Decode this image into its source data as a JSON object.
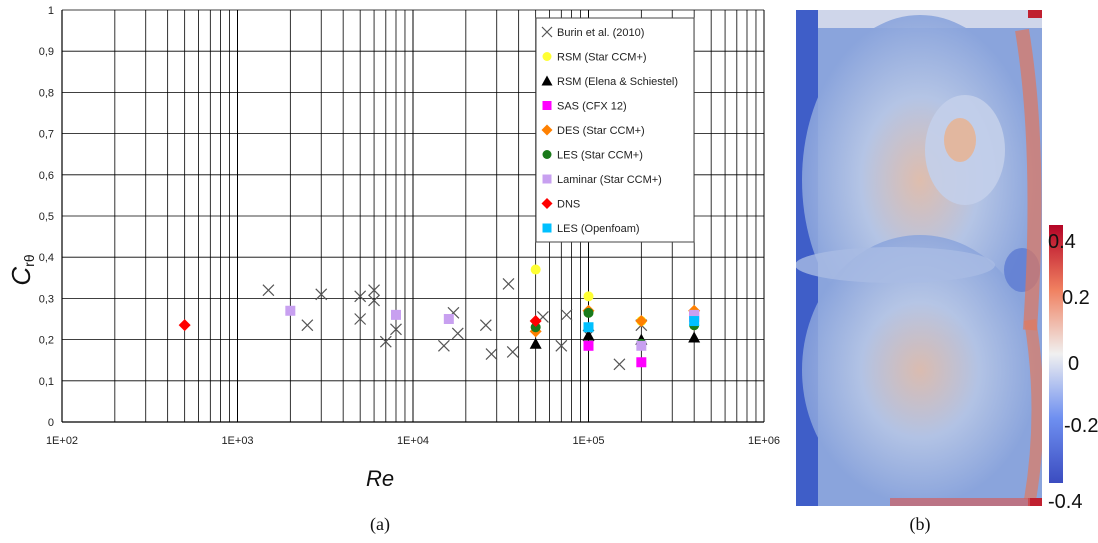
{
  "chart_data": {
    "type": "scatter",
    "xscale": "log",
    "xlim": [
      100,
      1000000
    ],
    "ylim": [
      0,
      1
    ],
    "xlabel": "Re",
    "ylabel": "C",
    "ylabel_sub": "rθ",
    "xticks": [
      "1E+02",
      "1E+03",
      "1E+04",
      "1E+05",
      "1E+06"
    ],
    "yticks": [
      "0",
      "0,1",
      "0,2",
      "0,3",
      "0,4",
      "0,5",
      "0,6",
      "0,7",
      "0,8",
      "0,9",
      "1"
    ],
    "grid": true,
    "legend_position": "top-right",
    "series": [
      {
        "name": "Burin et al. (2010)",
        "marker": "x",
        "color": "#555555",
        "points": [
          [
            1500,
            0.32
          ],
          [
            2500,
            0.235
          ],
          [
            3000,
            0.31
          ],
          [
            5000,
            0.305
          ],
          [
            5000,
            0.25
          ],
          [
            6000,
            0.32
          ],
          [
            6000,
            0.295
          ],
          [
            7000,
            0.195
          ],
          [
            8000,
            0.225
          ],
          [
            15000,
            0.185
          ],
          [
            17000,
            0.265
          ],
          [
            18000,
            0.215
          ],
          [
            26000,
            0.235
          ],
          [
            28000,
            0.165
          ],
          [
            35000,
            0.335
          ],
          [
            37000,
            0.17
          ],
          [
            55000,
            0.255
          ],
          [
            70000,
            0.185
          ],
          [
            75000,
            0.26
          ],
          [
            100000,
            0.21
          ],
          [
            150000,
            0.14
          ],
          [
            200000,
            0.235
          ]
        ]
      },
      {
        "name": "RSM (Star CCM+)",
        "marker": "circle",
        "color": "#ffff33",
        "points": [
          [
            50000,
            0.37
          ],
          [
            100000,
            0.305
          ],
          [
            200000,
            0.245
          ],
          [
            400000,
            0.235
          ]
        ]
      },
      {
        "name": "RSM (Elena & Schiestel)",
        "marker": "triangle",
        "color": "#000000",
        "points": [
          [
            50000,
            0.19
          ],
          [
            100000,
            0.21
          ],
          [
            200000,
            0.2
          ],
          [
            400000,
            0.205
          ]
        ]
      },
      {
        "name": "SAS (CFX 12)",
        "marker": "square",
        "color": "#ff00ff",
        "points": [
          [
            100000,
            0.185
          ],
          [
            200000,
            0.145
          ],
          [
            400000,
            0.255
          ]
        ]
      },
      {
        "name": "DES (Star CCM+)",
        "marker": "diamond",
        "color": "#ff8000",
        "points": [
          [
            50000,
            0.22
          ],
          [
            100000,
            0.27
          ],
          [
            200000,
            0.245
          ],
          [
            400000,
            0.27
          ]
        ]
      },
      {
        "name": "LES (Star CCM+)",
        "marker": "circle",
        "color": "#1a7a1a",
        "points": [
          [
            50000,
            0.23
          ],
          [
            100000,
            0.265
          ],
          [
            200000,
            0.19
          ],
          [
            400000,
            0.235
          ]
        ]
      },
      {
        "name": "Laminar (Star CCM+)",
        "marker": "square",
        "color": "#c8a0f0",
        "points": [
          [
            2000,
            0.27
          ],
          [
            8000,
            0.26
          ],
          [
            16000,
            0.25
          ],
          [
            200000,
            0.185
          ],
          [
            400000,
            0.26
          ]
        ]
      },
      {
        "name": "DNS",
        "marker": "diamond",
        "color": "#ff0000",
        "points": [
          [
            500,
            0.235
          ],
          [
            50000,
            0.245
          ]
        ]
      },
      {
        "name": "LES (Openfoam)",
        "marker": "square",
        "color": "#00c0ff",
        "points": [
          [
            100000,
            0.23
          ],
          [
            400000,
            0.245
          ]
        ]
      }
    ]
  },
  "colorbar": {
    "ticks": [
      "0.4",
      "0.2",
      "0",
      "-0.2",
      "-0.4"
    ],
    "colors": [
      "#b40426",
      "#f08060",
      "#f0f0f0",
      "#6e8ff0",
      "#3b4cc0"
    ]
  },
  "captions": {
    "a": "(a)",
    "b": "(b)"
  }
}
